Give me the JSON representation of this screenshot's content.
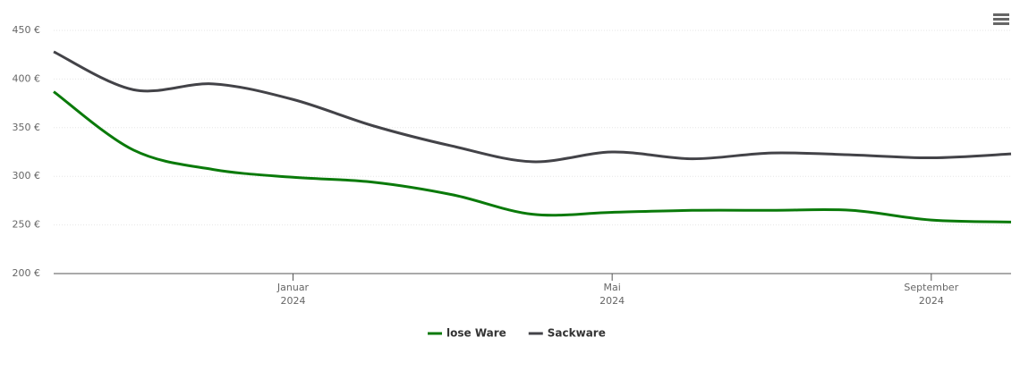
{
  "chart_data": {
    "type": "line",
    "x": [
      "2023-10",
      "2023-11",
      "2023-12",
      "2024-01",
      "2024-02",
      "2024-03",
      "2024-04",
      "2024-05",
      "2024-06",
      "2024-07",
      "2024-08",
      "2024-09",
      "2024-10"
    ],
    "series": [
      {
        "name": "lose Ware",
        "color": "#0a7a0a",
        "values": [
          387,
          327,
          307,
          299,
          294,
          281,
          261,
          263,
          265,
          265,
          265,
          255,
          253
        ]
      },
      {
        "name": "Sackware",
        "color": "#434348",
        "values": [
          428,
          389,
          395,
          379,
          352,
          331,
          315,
          325,
          318,
          324,
          322,
          319,
          323
        ]
      }
    ],
    "xlim": [
      "2023-10",
      "2024-10"
    ],
    "xticks": [
      {
        "value": "2024-01",
        "label": "Januar",
        "year": "2024"
      },
      {
        "value": "2024-05",
        "label": "Mai",
        "year": "2024"
      },
      {
        "value": "2024-09",
        "label": "September",
        "year": "2024"
      }
    ],
    "ylim": [
      200,
      450
    ],
    "yticks": [
      {
        "value": 200,
        "label": "200 €"
      },
      {
        "value": 250,
        "label": "250 €"
      },
      {
        "value": 300,
        "label": "300 €"
      },
      {
        "value": 350,
        "label": "350 €"
      },
      {
        "value": 400,
        "label": "400 €"
      },
      {
        "value": 450,
        "label": "450 €"
      }
    ],
    "grid": true,
    "legend": "bottom"
  }
}
